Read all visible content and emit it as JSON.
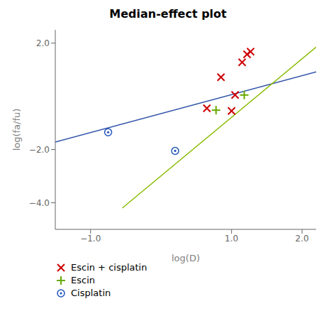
{
  "chart_data": {
    "type": "scatter",
    "title": "Median-effect plot",
    "xlabel": "log(D)",
    "ylabel": "log(fa/fu)",
    "xlim": [
      -1.5,
      2.2
    ],
    "ylim": [
      -5.0,
      2.5
    ],
    "xticks": [
      {
        "value": -1.0,
        "label": "−1.0"
      },
      {
        "value": 1.0,
        "label": "1.0"
      },
      {
        "value": 2.0,
        "label": "2.0"
      }
    ],
    "yticks": [
      {
        "value": -4.0,
        "label": "−4.0"
      },
      {
        "value": -2.0,
        "label": "−2.0"
      },
      {
        "value": 2.0,
        "label": "2.0"
      }
    ],
    "grid": false,
    "legend": "bottom",
    "series": [
      {
        "type": "line",
        "color": "#3355aa",
        "x": [
          -1.5,
          2.2
        ],
        "values": [
          -1.72,
          0.92
        ]
      },
      {
        "type": "line",
        "color": "#88bb00",
        "x": [
          -0.55,
          2.2
        ],
        "values": [
          -4.2,
          1.85
        ]
      },
      {
        "name": "Escin + cisplatin",
        "type": "scatter",
        "marker": "x",
        "color": "#cc0000",
        "x": [
          0.65,
          0.85,
          1.0,
          1.05,
          1.15,
          1.22,
          1.27
        ],
        "values": [
          -0.45,
          0.72,
          -0.55,
          0.05,
          1.28,
          1.58,
          1.68
        ]
      },
      {
        "name": "Escin",
        "type": "scatter",
        "marker": "+",
        "color": "#66aa00",
        "x": [
          0.78,
          1.18
        ],
        "values": [
          -0.52,
          0.05
        ]
      },
      {
        "name": "Cisplatin",
        "type": "scatter",
        "marker": "circle",
        "color": "#2255bb",
        "x": [
          -0.75,
          0.2
        ],
        "values": [
          -1.35,
          -2.05
        ]
      }
    ]
  }
}
